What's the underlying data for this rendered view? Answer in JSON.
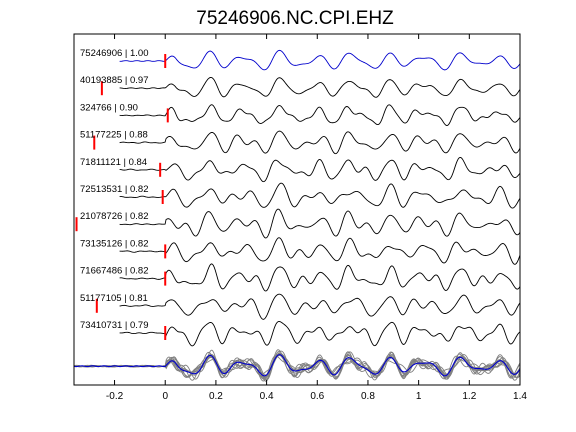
{
  "chart_data": {
    "type": "line",
    "title": "75246906.NC.CPI.EHZ",
    "xlabel": "",
    "ylabel": "",
    "xlim": [
      -0.36,
      1.4
    ],
    "xticks": [
      -0.2,
      0,
      0.2,
      0.4,
      0.6,
      0.8,
      1,
      1.2,
      1.4
    ],
    "xtick_labels": [
      "-0.2",
      "0",
      "0.2",
      "0.4",
      "0.6",
      "0.8",
      "1",
      "1.2",
      "1.4"
    ],
    "grid": false,
    "legend": "none",
    "master_trace": {
      "label": "75246906 | 1.00",
      "event_id": "75246906",
      "correlation": 1.0,
      "pick_time": 0.0,
      "color": "#0000cc"
    },
    "traces": [
      {
        "label": "40193885 | 0.97",
        "event_id": "40193885",
        "correlation": 0.97,
        "pick_time": -0.25
      },
      {
        "label": "324766 | 0.90",
        "event_id": "324766",
        "correlation": 0.9,
        "pick_time": 0.01
      },
      {
        "label": "51177225 | 0.88",
        "event_id": "51177225",
        "correlation": 0.88,
        "pick_time": -0.28
      },
      {
        "label": "71811121 | 0.84",
        "event_id": "71811121",
        "correlation": 0.84,
        "pick_time": -0.02
      },
      {
        "label": "72513531 | 0.82",
        "event_id": "72513531",
        "correlation": 0.82,
        "pick_time": -0.01
      },
      {
        "label": "21078726 | 0.82",
        "event_id": "21078726",
        "correlation": 0.82,
        "pick_time": -0.35
      },
      {
        "label": "73135126 | 0.82",
        "event_id": "73135126",
        "correlation": 0.82,
        "pick_time": 0.0
      },
      {
        "label": "71667486 | 0.82",
        "event_id": "71667486",
        "correlation": 0.82,
        "pick_time": 0.0
      },
      {
        "label": "51177105 | 0.81",
        "event_id": "51177105",
        "correlation": 0.81,
        "pick_time": -0.27
      },
      {
        "label": "73410731 | 0.79",
        "event_id": "73410731",
        "correlation": 0.79,
        "pick_time": 0.0
      }
    ],
    "stack_row": {
      "trace_color": "#808080",
      "master_color": "#0000cc"
    },
    "colors": {
      "axis": "#000000",
      "trace": "#000000",
      "pick": "#ff0000",
      "master": "#0000cc",
      "overlay": "#808080"
    }
  }
}
